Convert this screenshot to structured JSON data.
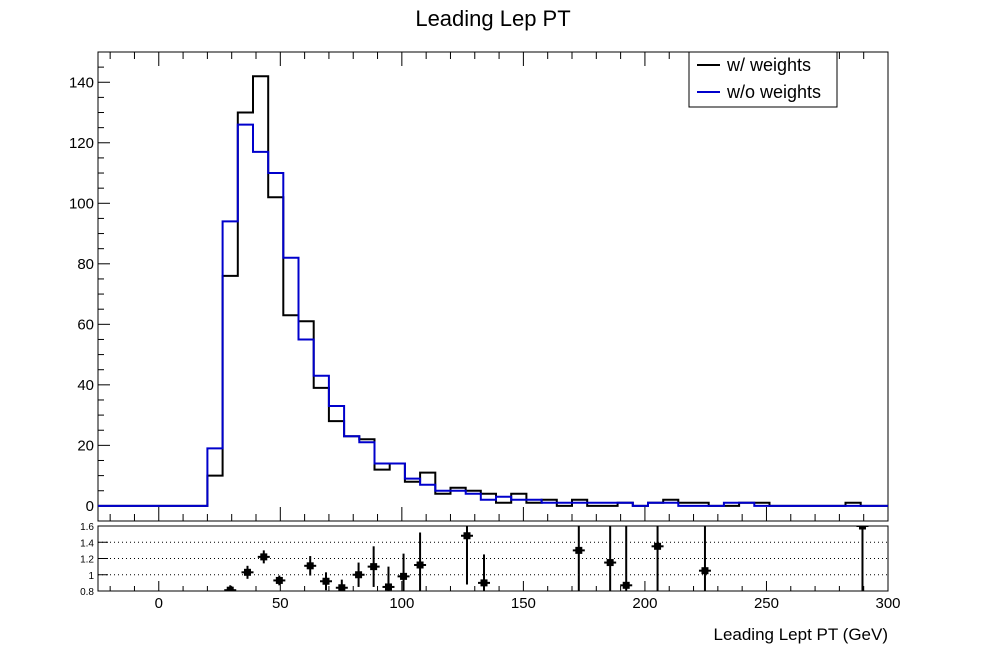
{
  "chart_data": [
    {
      "type": "line",
      "subtype": "step-histogram",
      "title": "Leading Lep PT",
      "xlabel": "",
      "ylabel": "",
      "xlim": [
        -25,
        300
      ],
      "ylim": [
        -5,
        150
      ],
      "x_ticks": [
        0,
        50,
        100,
        150,
        200,
        250,
        300
      ],
      "y_ticks": [
        0,
        20,
        40,
        60,
        80,
        100,
        120,
        140
      ],
      "bin_edges": [
        -25,
        0,
        20,
        26.25,
        32.5,
        38.75,
        45,
        51.25,
        57.5,
        63.75,
        70,
        76.25,
        82.5,
        88.75,
        95,
        101.25,
        107.5,
        113.75,
        120,
        126.25,
        132.5,
        138.75,
        145,
        151.25,
        157.5,
        163.75,
        170,
        176.25,
        182.5,
        188.75,
        195,
        201.25,
        207.5,
        213.75,
        220,
        226.25,
        232.5,
        238.75,
        245,
        251.25,
        257.5,
        263.75,
        270,
        276.25,
        282.5,
        288.75,
        295,
        300
      ],
      "series": [
        {
          "name": "w/ weights",
          "color": "#000000",
          "values": [
            0,
            0,
            10,
            76,
            130,
            142,
            102,
            63,
            61,
            39,
            28,
            23,
            22,
            12,
            14,
            8,
            11,
            4,
            6,
            5,
            4,
            1,
            4,
            1,
            2,
            0,
            2,
            0,
            0,
            1,
            0,
            1,
            2,
            1,
            1,
            0,
            0,
            1,
            1,
            0,
            0,
            0,
            0,
            0,
            1,
            0,
            0
          ]
        },
        {
          "name": "w/o weights",
          "color": "#0000cc",
          "values": [
            0,
            0,
            19,
            94,
            126,
            117,
            110,
            82,
            55,
            43,
            33,
            23,
            21,
            14,
            14,
            9,
            7,
            5,
            5,
            4,
            2,
            3,
            2,
            2,
            1,
            1,
            1,
            1,
            1,
            1,
            0,
            1,
            1,
            0,
            0,
            0,
            1,
            1,
            0,
            0,
            0,
            0,
            0,
            0,
            0,
            0,
            0
          ]
        }
      ],
      "legend_position": "top-right"
    },
    {
      "type": "scatter",
      "subtype": "ratio",
      "xlabel": "Leading Lept PT (GeV)",
      "xlim": [
        -25,
        300
      ],
      "ylim": [
        0.8,
        1.6
      ],
      "y_ticks": [
        "0.8",
        "1",
        "1.2",
        "1.4",
        "1.6"
      ],
      "grid": "horizontal-dotted",
      "points": [
        {
          "x": 29.4,
          "y": 0.81,
          "err": 0.06
        },
        {
          "x": 36.5,
          "y": 1.03,
          "err": 0.08
        },
        {
          "x": 43.2,
          "y": 1.22,
          "err": 0.08
        },
        {
          "x": 49.6,
          "y": 0.93,
          "err": 0.06
        },
        {
          "x": 62.3,
          "y": 1.11,
          "err": 0.12
        },
        {
          "x": 68.8,
          "y": 0.92,
          "err": 0.11
        },
        {
          "x": 75.3,
          "y": 0.84,
          "err": 0.1
        },
        {
          "x": 82.2,
          "y": 1.0,
          "err": 0.15
        },
        {
          "x": 88.4,
          "y": 1.1,
          "err": 0.25
        },
        {
          "x": 94.5,
          "y": 0.85,
          "err": 0.25
        },
        {
          "x": 100.7,
          "y": 0.98,
          "err": 0.28
        },
        {
          "x": 107.5,
          "y": 1.12,
          "err": 0.4
        },
        {
          "x": 126.8,
          "y": 1.48,
          "err": 0.6
        },
        {
          "x": 133.8,
          "y": 0.9,
          "err": 0.35
        },
        {
          "x": 172.8,
          "y": 1.3,
          "err": 0.6
        },
        {
          "x": 185.7,
          "y": 1.15,
          "err": 0.7
        },
        {
          "x": 192.3,
          "y": 0.87,
          "err": 0.8
        },
        {
          "x": 205.2,
          "y": 1.35,
          "err": 0.9
        },
        {
          "x": 224.7,
          "y": 1.05,
          "err": 0.8
        },
        {
          "x": 289.5,
          "y": 1.6,
          "err": 0.9
        }
      ]
    }
  ]
}
